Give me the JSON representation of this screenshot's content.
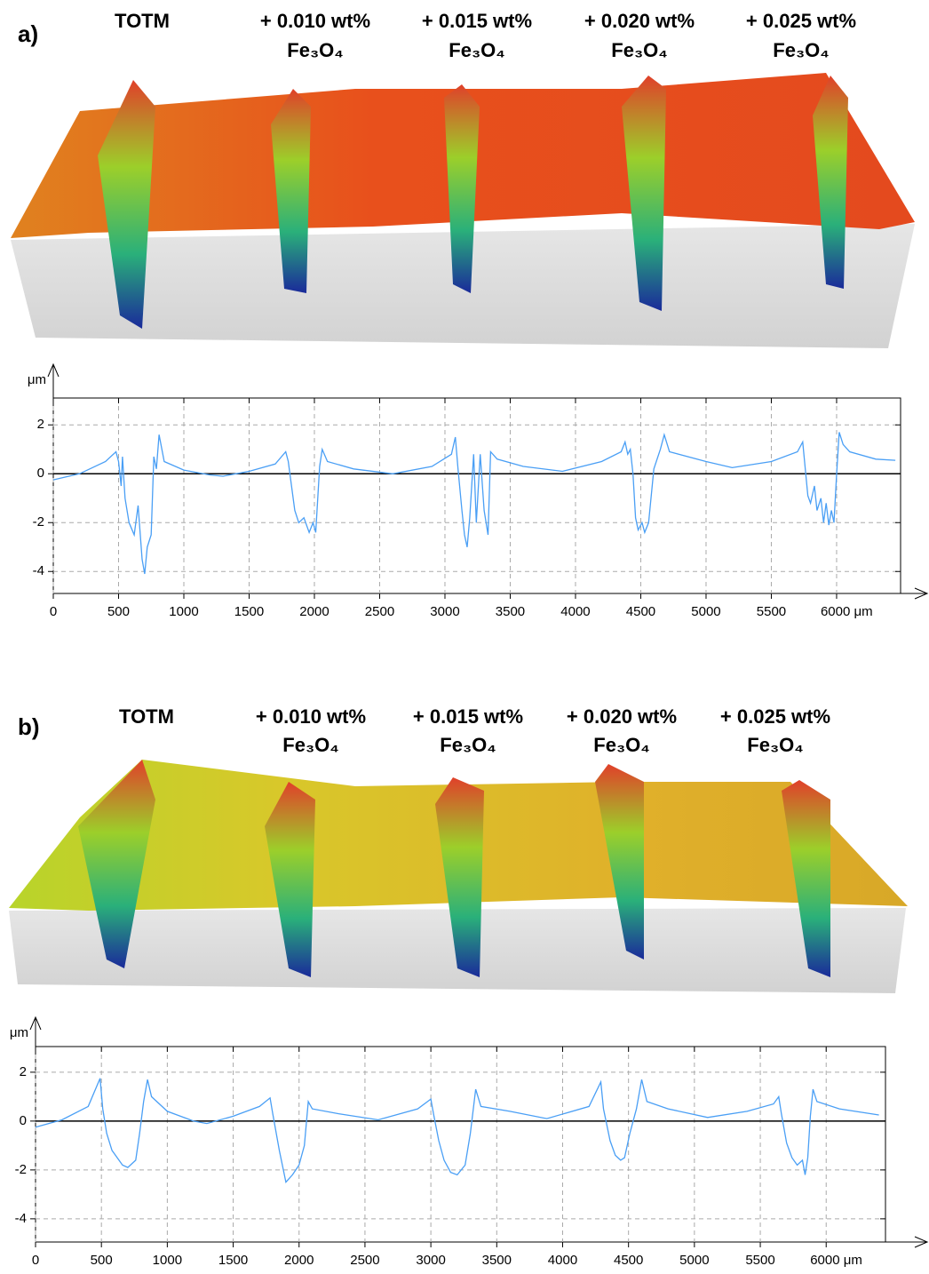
{
  "chart_data": [
    {
      "type": "line",
      "panel_label": "a)",
      "annotations": [
        [
          "TOTM"
        ],
        [
          "+ 0.010 wt%",
          "Fe₃O₄"
        ],
        [
          "+ 0.015 wt%",
          "Fe₃O₄"
        ],
        [
          "+ 0.020 wt%",
          "Fe₃O₄"
        ],
        [
          "+ 0.025 wt%",
          "Fe₃O₄"
        ]
      ],
      "ylabel": "μm",
      "color": "#4a9ff5",
      "reference_line": 0,
      "grid": true,
      "xlim": [
        0,
        6490
      ],
      "ylim": [
        -4.9,
        3.1
      ],
      "xticks": [
        0,
        500,
        1000,
        1500,
        2000,
        2500,
        3000,
        3500,
        4000,
        4500,
        5000,
        5500,
        {
          "value": 6000,
          "label": "6000 μm"
        }
      ],
      "yticks": [
        2,
        0,
        -2,
        -4
      ],
      "x": [
        0,
        200,
        400,
        480,
        500,
        520,
        530,
        550,
        580,
        620,
        650,
        680,
        700,
        720,
        750,
        770,
        790,
        810,
        850,
        1000,
        1200,
        1300,
        1500,
        1700,
        1780,
        1800,
        1820,
        1850,
        1880,
        1920,
        1960,
        1990,
        2010,
        2040,
        2060,
        2100,
        2300,
        2600,
        2900,
        3050,
        3080,
        3100,
        3130,
        3150,
        3170,
        3190,
        3220,
        3240,
        3270,
        3300,
        3330,
        3350,
        3400,
        3600,
        3900,
        4200,
        4350,
        4380,
        4400,
        4420,
        4440,
        4460,
        4480,
        4510,
        4530,
        4560,
        4600,
        4650,
        4680,
        4720,
        5000,
        5200,
        5500,
        5700,
        5740,
        5760,
        5780,
        5800,
        5830,
        5850,
        5880,
        5900,
        5920,
        5940,
        5960,
        5980,
        6000,
        6020,
        6050,
        6100,
        6300,
        6450
      ],
      "values": [
        -0.25,
        0,
        0.5,
        0.9,
        0.5,
        -0.5,
        0.7,
        -1.0,
        -2.0,
        -2.5,
        -1.3,
        -3.5,
        -4.1,
        -3.0,
        -2.5,
        0.7,
        0.2,
        1.6,
        0.5,
        0.15,
        -0.05,
        -0.1,
        0.1,
        0.4,
        0.9,
        0.5,
        -0.3,
        -1.5,
        -2.0,
        -1.8,
        -2.4,
        -2.0,
        -2.4,
        0.3,
        1.0,
        0.5,
        0.2,
        0,
        0.3,
        0.8,
        1.5,
        0.2,
        -1.5,
        -2.5,
        -3.0,
        -1.8,
        0.8,
        -2.0,
        0.8,
        -1.5,
        -2.5,
        0.9,
        0.6,
        0.3,
        0.1,
        0.5,
        0.9,
        1.3,
        0.8,
        1.0,
        0,
        -1.8,
        -2.3,
        -2.0,
        -2.4,
        -2.0,
        0.2,
        1.0,
        1.6,
        0.9,
        0.5,
        0.25,
        0.5,
        0.9,
        1.3,
        0.2,
        -0.9,
        -1.2,
        -0.5,
        -1.5,
        -1.0,
        -2.0,
        -1.2,
        -2.1,
        -1.5,
        -2.0,
        0,
        1.7,
        1.2,
        0.9,
        0.6,
        0.55
      ]
    },
    {
      "type": "line",
      "panel_label": "b)",
      "annotations": [
        [
          "TOTM"
        ],
        [
          "+ 0.010 wt%",
          "Fe₃O₄"
        ],
        [
          "+ 0.015 wt%",
          "Fe₃O₄"
        ],
        [
          "+ 0.020 wt%",
          "Fe₃O₄"
        ],
        [
          "+ 0.025 wt%",
          "Fe₃O₄"
        ]
      ],
      "ylabel": "μm",
      "color": "#4a9ff5",
      "reference_line": 0,
      "grid": true,
      "xlim": [
        0,
        6450
      ],
      "ylim": [
        -4.95,
        3.05
      ],
      "xticks": [
        0,
        500,
        1000,
        1500,
        2000,
        2500,
        3000,
        3500,
        4000,
        4500,
        5000,
        5500,
        {
          "value": 6000,
          "label": "6000 μm"
        }
      ],
      "yticks": [
        2,
        0,
        -2,
        -4
      ],
      "x": [
        0,
        200,
        400,
        490,
        510,
        540,
        580,
        620,
        660,
        700,
        760,
        790,
        820,
        850,
        880,
        1000,
        1200,
        1300,
        1500,
        1700,
        1780,
        1800,
        1850,
        1900,
        1950,
        2000,
        2040,
        2070,
        2100,
        2300,
        2600,
        2900,
        3000,
        3020,
        3060,
        3100,
        3150,
        3200,
        3260,
        3300,
        3340,
        3380,
        3600,
        3880,
        4200,
        4290,
        4310,
        4360,
        4400,
        4440,
        4470,
        4510,
        4560,
        4600,
        4640,
        4800,
        5100,
        5400,
        5600,
        5640,
        5660,
        5700,
        5740,
        5780,
        5820,
        5840,
        5860,
        5880,
        5900,
        5930,
        6100,
        6400
      ],
      "values": [
        -0.25,
        0.05,
        0.6,
        1.75,
        0.5,
        -0.5,
        -1.2,
        -1.5,
        -1.8,
        -1.9,
        -1.6,
        -0.5,
        0.8,
        1.7,
        1.0,
        0.4,
        0.0,
        -0.1,
        0.2,
        0.6,
        0.95,
        0.3,
        -1.2,
        -2.5,
        -2.2,
        -1.8,
        -1.0,
        0.8,
        0.5,
        0.3,
        0.05,
        0.5,
        0.9,
        0.3,
        -0.8,
        -1.6,
        -2.1,
        -2.2,
        -1.8,
        -0.5,
        1.3,
        0.6,
        0.4,
        0.1,
        0.6,
        1.6,
        0.5,
        -0.8,
        -1.4,
        -1.6,
        -1.5,
        -0.5,
        0.5,
        1.7,
        0.8,
        0.5,
        0.15,
        0.4,
        0.7,
        1.0,
        0.3,
        -0.9,
        -1.5,
        -1.8,
        -1.6,
        -2.2,
        -1.5,
        0.2,
        1.3,
        0.8,
        0.5,
        0.25
      ]
    }
  ]
}
